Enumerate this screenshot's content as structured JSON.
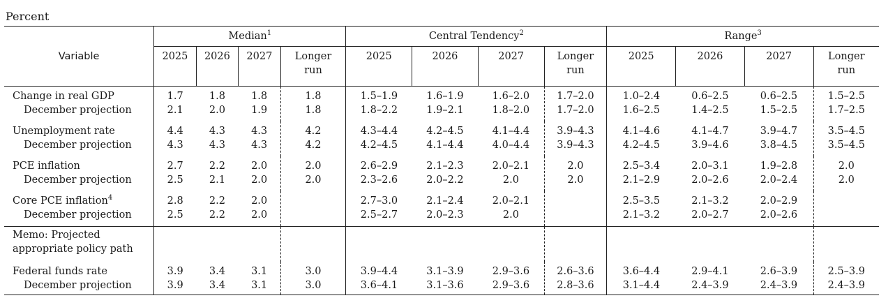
{
  "unit_label": "Percent",
  "header": {
    "variable": "Variable",
    "groups": [
      {
        "label": "Median",
        "note": "1"
      },
      {
        "label": "Central Tendency",
        "note": "2"
      },
      {
        "label": "Range",
        "note": "3"
      }
    ],
    "years": [
      "2025",
      "2026",
      "2027"
    ],
    "longer_run": [
      "Longer",
      "run"
    ]
  },
  "rows": [
    {
      "label": "Change in real GDP",
      "note": "",
      "sub": "December projection",
      "median": [
        [
          "1.7",
          "2.1"
        ],
        [
          "1.8",
          "2.0"
        ],
        [
          "1.8",
          "1.9"
        ],
        [
          "1.8",
          "1.8"
        ]
      ],
      "ct": [
        [
          "1.5–1.9",
          "1.8–2.2"
        ],
        [
          "1.6–1.9",
          "1.9–2.1"
        ],
        [
          "1.6–2.0",
          "1.8–2.0"
        ],
        [
          "1.7–2.0",
          "1.7–2.0"
        ]
      ],
      "range": [
        [
          "1.0–2.4",
          "1.6–2.5"
        ],
        [
          "0.6–2.5",
          "1.4–2.5"
        ],
        [
          "0.6–2.5",
          "1.5–2.5"
        ],
        [
          "1.5–2.5",
          "1.7–2.5"
        ]
      ]
    },
    {
      "label": "Unemployment rate",
      "note": "",
      "sub": "December projection",
      "median": [
        [
          "4.4",
          "4.3"
        ],
        [
          "4.3",
          "4.3"
        ],
        [
          "4.3",
          "4.3"
        ],
        [
          "4.2",
          "4.2"
        ]
      ],
      "ct": [
        [
          "4.3–4.4",
          "4.2–4.5"
        ],
        [
          "4.2–4.5",
          "4.1–4.4"
        ],
        [
          "4.1–4.4",
          "4.0–4.4"
        ],
        [
          "3.9–4.3",
          "3.9–4.3"
        ]
      ],
      "range": [
        [
          "4.1–4.6",
          "4.2–4.5"
        ],
        [
          "4.1–4.7",
          "3.9–4.6"
        ],
        [
          "3.9–4.7",
          "3.8–4.5"
        ],
        [
          "3.5–4.5",
          "3.5–4.5"
        ]
      ]
    },
    {
      "label": "PCE inflation",
      "note": "",
      "sub": "December projection",
      "median": [
        [
          "2.7",
          "2.5"
        ],
        [
          "2.2",
          "2.1"
        ],
        [
          "2.0",
          "2.0"
        ],
        [
          "2.0",
          "2.0"
        ]
      ],
      "ct": [
        [
          "2.6–2.9",
          "2.3–2.6"
        ],
        [
          "2.1–2.3",
          "2.0–2.2"
        ],
        [
          "2.0–2.1",
          "2.0"
        ],
        [
          "2.0",
          "2.0"
        ]
      ],
      "range": [
        [
          "2.5–3.4",
          "2.1–2.9"
        ],
        [
          "2.0–3.1",
          "2.0–2.6"
        ],
        [
          "1.9–2.8",
          "2.0–2.4"
        ],
        [
          "2.0",
          "2.0"
        ]
      ]
    },
    {
      "label": "Core PCE inflation",
      "note": "4",
      "sub": "December projection",
      "median": [
        [
          "2.8",
          "2.5"
        ],
        [
          "2.2",
          "2.2"
        ],
        [
          "2.0",
          "2.0"
        ],
        [
          "",
          ""
        ]
      ],
      "ct": [
        [
          "2.7–3.0",
          "2.5–2.7"
        ],
        [
          "2.1–2.4",
          "2.0–2.3"
        ],
        [
          "2.0–2.1",
          "2.0"
        ],
        [
          "",
          ""
        ]
      ],
      "range": [
        [
          "2.5–3.5",
          "2.1–3.2"
        ],
        [
          "2.1–3.2",
          "2.0–2.7"
        ],
        [
          "2.0–2.9",
          "2.0–2.6"
        ],
        [
          "",
          ""
        ]
      ]
    }
  ],
  "memo": [
    "Memo: Projected",
    "appropriate policy path"
  ],
  "funds": {
    "label": "Federal funds rate",
    "sub": "December projection",
    "median": [
      [
        "3.9",
        "3.9"
      ],
      [
        "3.4",
        "3.4"
      ],
      [
        "3.1",
        "3.1"
      ],
      [
        "3.0",
        "3.0"
      ]
    ],
    "ct": [
      [
        "3.9–4.4",
        "3.6–4.1"
      ],
      [
        "3.1–3.9",
        "3.1–3.6"
      ],
      [
        "2.9–3.6",
        "2.9–3.6"
      ],
      [
        "2.6–3.6",
        "2.8–3.6"
      ]
    ],
    "range": [
      [
        "3.6–4.4",
        "3.1–4.4"
      ],
      [
        "2.9–4.1",
        "2.4–3.9"
      ],
      [
        "2.6–3.9",
        "2.4–3.9"
      ],
      [
        "2.5–3.9",
        "2.4–3.9"
      ]
    ]
  }
}
